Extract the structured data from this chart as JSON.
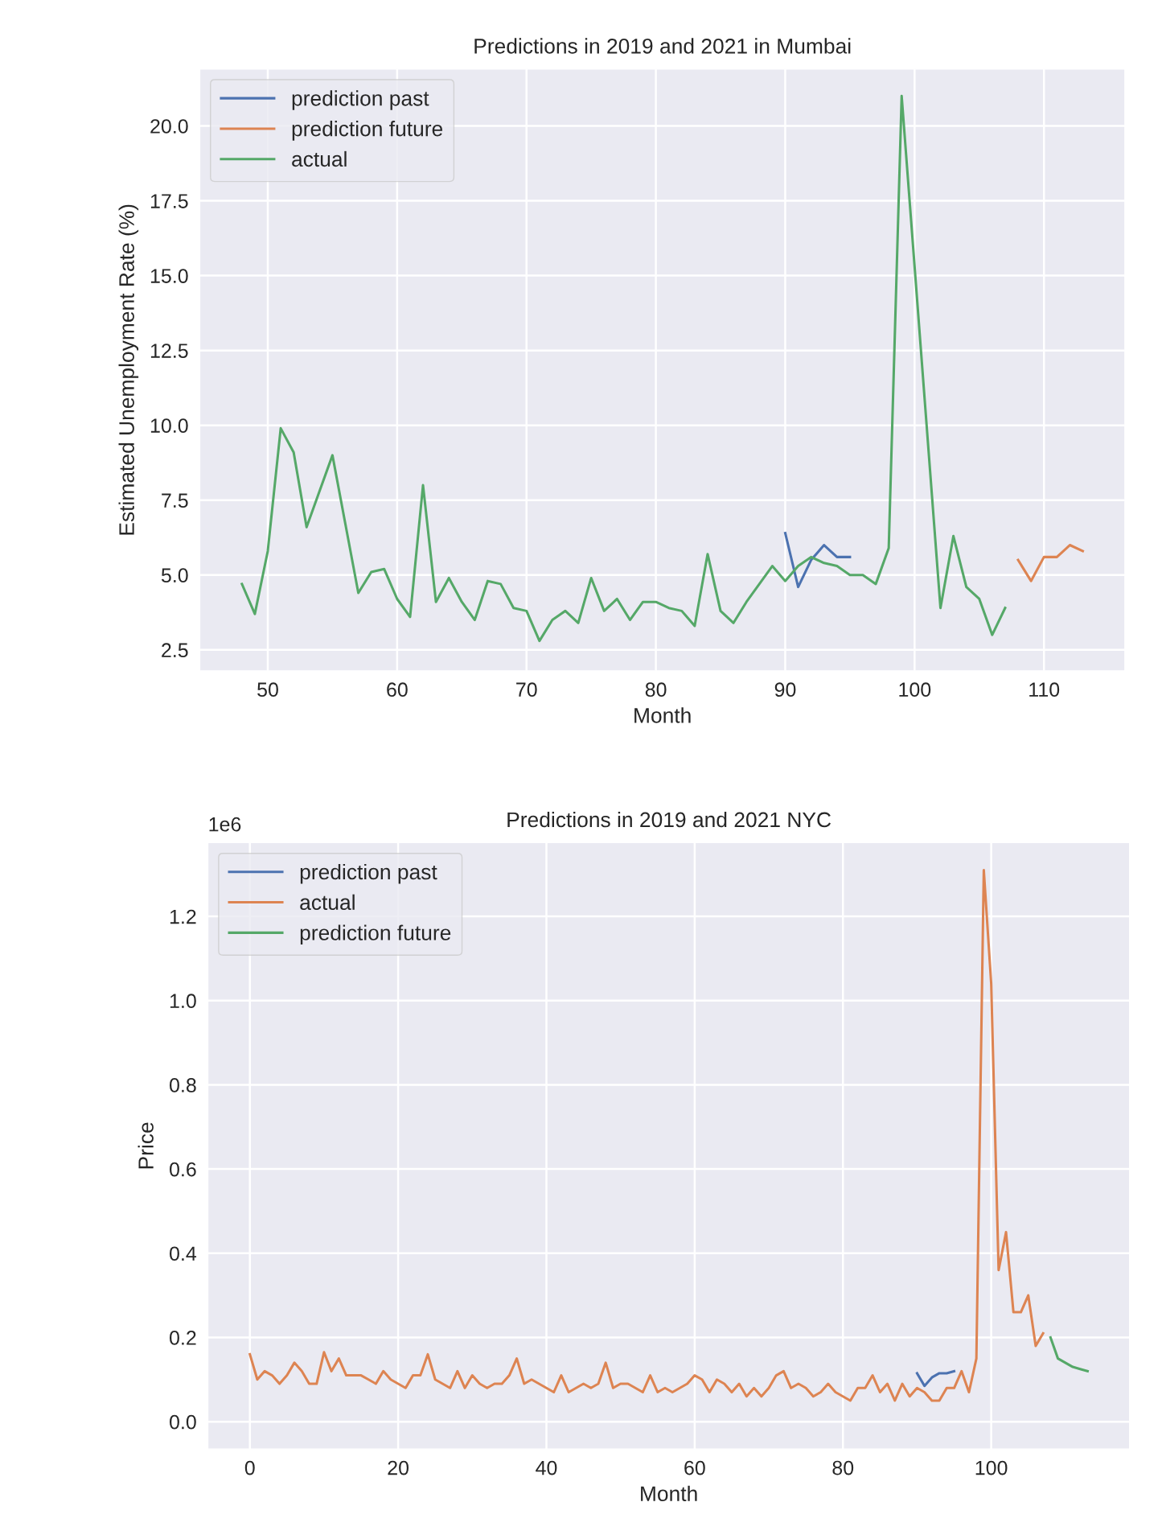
{
  "chart_data": [
    {
      "type": "line",
      "title": "Predictions in 2019 and 2021 in Mumbai",
      "xlabel": "Month",
      "ylabel": "Estimated Unemployment Rate (%)",
      "grid": true,
      "legend": "top left",
      "xlim": [
        44.75,
        116.25
      ],
      "xticks": [
        50,
        60,
        70,
        80,
        90,
        100,
        110
      ],
      "ylim": [
        1.8,
        21.9
      ],
      "yticks": [
        2.5,
        {
          "value": 5,
          "label": "5.0"
        },
        7.5,
        {
          "value": 10,
          "label": "10.0"
        },
        12.5,
        {
          "value": 15,
          "label": "15.0"
        },
        17.5,
        {
          "value": 20,
          "label": "20.0"
        }
      ],
      "series": [
        {
          "name": "prediction past",
          "color": "#4c72b0",
          "x": [
            90,
            91,
            92,
            93,
            94,
            95
          ],
          "values": [
            6.4,
            4.6,
            5.5,
            6.0,
            5.6,
            5.6
          ]
        },
        {
          "name": "prediction future",
          "color": "#dd8452",
          "x": [
            108,
            109,
            110,
            111,
            112,
            113
          ],
          "values": [
            5.5,
            4.8,
            5.6,
            5.6,
            6.0,
            5.8
          ]
        },
        {
          "name": "actual",
          "color": "#55a868",
          "x": [
            48,
            49,
            50,
            51,
            52,
            53,
            54,
            55,
            56,
            57,
            58,
            59,
            60,
            61,
            62,
            63,
            64,
            65,
            66,
            67,
            68,
            69,
            70,
            71,
            72,
            73,
            74,
            75,
            76,
            77,
            78,
            79,
            80,
            81,
            82,
            83,
            84,
            85,
            86,
            87,
            88,
            89,
            90,
            91,
            92,
            93,
            94,
            95,
            96,
            97,
            98,
            99,
            100,
            101,
            102,
            103,
            104,
            105,
            106,
            107
          ],
          "values": [
            4.7,
            3.7,
            5.8,
            9.9,
            9.1,
            6.6,
            7.8,
            9.0,
            6.7,
            4.4,
            5.1,
            5.2,
            4.2,
            3.6,
            8.0,
            4.1,
            4.9,
            4.1,
            3.5,
            4.8,
            4.7,
            3.9,
            3.8,
            2.8,
            3.5,
            3.8,
            3.4,
            4.9,
            3.8,
            4.2,
            3.5,
            4.1,
            4.1,
            3.9,
            3.8,
            3.3,
            5.7,
            3.8,
            3.4,
            4.1,
            4.7,
            5.3,
            4.8,
            5.3,
            5.6,
            5.4,
            5.3,
            5.0,
            5.0,
            4.7,
            5.9,
            21.0,
            15.3,
            9.6,
            3.9,
            6.3,
            4.6,
            4.2,
            3.0,
            3.9
          ]
        }
      ]
    },
    {
      "type": "line",
      "title": "Predictions in 2019 and 2021 NYC",
      "xlabel": "Month",
      "ylabel": "Price",
      "annotations": [
        "1e6"
      ],
      "grid": true,
      "legend": "top left",
      "xlim": [
        -5.65,
        118.65
      ],
      "xticks": [
        0,
        20,
        40,
        60,
        80,
        100
      ],
      "ylim": [
        -0.065,
        1.375
      ],
      "yticks": [
        {
          "value": 0,
          "label": "0.0"
        },
        0.2,
        0.4,
        0.6,
        0.8,
        {
          "value": 1,
          "label": "1.0"
        },
        1.2
      ],
      "series": [
        {
          "name": "prediction past",
          "color": "#4c72b0",
          "x": [
            90,
            91,
            92,
            93,
            94,
            95
          ],
          "values": [
            0.115,
            0.085,
            0.105,
            0.115,
            0.115,
            0.12
          ]
        },
        {
          "name": "actual",
          "color": "#dd8452",
          "x": [
            0,
            1,
            2,
            3,
            4,
            5,
            6,
            7,
            8,
            9,
            10,
            11,
            12,
            13,
            14,
            15,
            16,
            17,
            18,
            19,
            20,
            21,
            22,
            23,
            24,
            25,
            26,
            27,
            28,
            29,
            30,
            31,
            32,
            33,
            34,
            35,
            36,
            37,
            38,
            39,
            40,
            41,
            42,
            43,
            44,
            45,
            46,
            47,
            48,
            49,
            50,
            51,
            52,
            53,
            54,
            55,
            56,
            57,
            58,
            59,
            60,
            61,
            62,
            63,
            64,
            65,
            66,
            67,
            68,
            69,
            70,
            71,
            72,
            73,
            74,
            75,
            76,
            77,
            78,
            79,
            80,
            81,
            82,
            83,
            84,
            85,
            86,
            87,
            88,
            89,
            90,
            91,
            92,
            93,
            94,
            95,
            96,
            97,
            98,
            99,
            100,
            101,
            102,
            103,
            104,
            105,
            106,
            107
          ],
          "values": [
            0.16,
            0.1,
            0.12,
            0.11,
            0.09,
            0.11,
            0.14,
            0.12,
            0.09,
            0.09,
            0.165,
            0.12,
            0.15,
            0.11,
            0.11,
            0.11,
            0.1,
            0.09,
            0.12,
            0.1,
            0.09,
            0.08,
            0.11,
            0.11,
            0.16,
            0.1,
            0.09,
            0.08,
            0.12,
            0.08,
            0.11,
            0.09,
            0.08,
            0.09,
            0.09,
            0.11,
            0.15,
            0.09,
            0.1,
            0.09,
            0.08,
            0.07,
            0.11,
            0.07,
            0.08,
            0.09,
            0.08,
            0.09,
            0.14,
            0.08,
            0.09,
            0.09,
            0.08,
            0.07,
            0.11,
            0.07,
            0.08,
            0.07,
            0.08,
            0.09,
            0.11,
            0.1,
            0.07,
            0.1,
            0.09,
            0.07,
            0.09,
            0.06,
            0.08,
            0.06,
            0.08,
            0.11,
            0.12,
            0.08,
            0.09,
            0.08,
            0.06,
            0.07,
            0.09,
            0.07,
            0.06,
            0.05,
            0.08,
            0.08,
            0.11,
            0.07,
            0.09,
            0.05,
            0.09,
            0.06,
            0.08,
            0.07,
            0.05,
            0.05,
            0.08,
            0.08,
            0.12,
            0.07,
            0.15,
            1.31,
            1.04,
            0.36,
            0.45,
            0.26,
            0.26,
            0.3,
            0.18,
            0.21
          ]
        },
        {
          "name": "prediction future",
          "color": "#55a868",
          "x": [
            108,
            109,
            110,
            111,
            112,
            113
          ],
          "values": [
            0.2,
            0.15,
            0.14,
            0.13,
            0.125,
            0.12
          ]
        }
      ]
    }
  ]
}
